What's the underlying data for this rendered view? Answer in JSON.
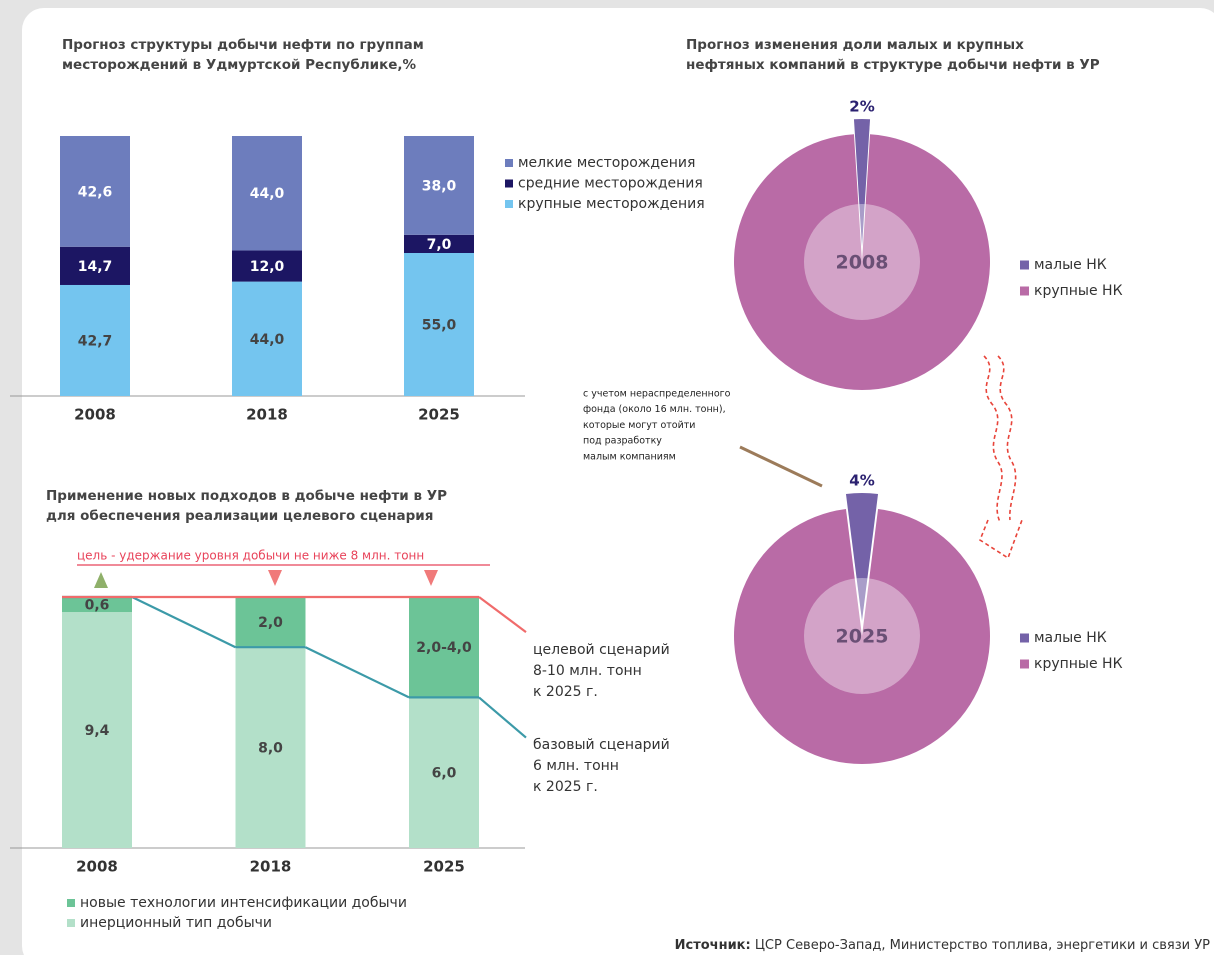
{
  "chart_data": [
    {
      "type": "bar",
      "stacked": true,
      "title": [
        "Прогноз структуры добычи нефти по группам",
        "месторождений в Удмуртской Республике,%"
      ],
      "categories": [
        "2008",
        "2018",
        "2025"
      ],
      "series": [
        {
          "name": "крупные месторождения",
          "color": "#74c5ef",
          "label_color": "#444444",
          "values": [
            42.7,
            44.0,
            55.0
          ],
          "value_labels": [
            "42,7",
            "44,0",
            "55,0"
          ]
        },
        {
          "name": "средние месторождения",
          "color": "#1c1663",
          "label_color": "#ffffff",
          "values": [
            14.7,
            12.0,
            7.0
          ],
          "value_labels": [
            "14,7",
            "12,0",
            "7,0"
          ]
        },
        {
          "name": "мелкие месторождения",
          "color": "#6d7dbd",
          "label_color": "#ffffff",
          "values": [
            42.6,
            44.0,
            38.0
          ],
          "value_labels": [
            "42,6",
            "44,0",
            "38,0"
          ]
        }
      ],
      "ylim": [
        0,
        100
      ]
    },
    {
      "type": "pie",
      "title": [
        "Прогноз изменения доли малых и крупных",
        "нефтяных компаний в структуре добычи нефти в УР"
      ],
      "center_label": "2008",
      "categories": [
        "малые НК",
        "крупные НК"
      ],
      "values": [
        2,
        98
      ],
      "value_labels": [
        "2%",
        null
      ],
      "colors": [
        "#7462a8",
        "#b96ba6"
      ]
    },
    {
      "type": "pie",
      "center_label": "2025",
      "categories": [
        "малые НК",
        "крупные НК"
      ],
      "values": [
        4,
        96
      ],
      "value_labels": [
        "4%",
        null
      ],
      "colors": [
        "#7462a8",
        "#b96ba6"
      ],
      "annotation": [
        "с учетом нераспределенного",
        "фонда (около 16 млн. тонн),",
        "которые могут отойти",
        "под разработку",
        "малым компаниям"
      ]
    },
    {
      "type": "bar",
      "stacked": true,
      "title": [
        "Применение новых подходов в добыче нефти в УР",
        "для обеспечения реализации целевого сценария"
      ],
      "target_label": "цель - удержание уровня добычи не ниже 8 млн. тонн",
      "categories": [
        "2008",
        "2018",
        "2025",
        null
      ],
      "series": [
        {
          "name": "инерционный тип добычи",
          "color": "#b3e0c9",
          "label_color": "#444444",
          "values": [
            9.4,
            8.0,
            6.0,
            null
          ],
          "value_labels": [
            "9,4",
            "8,0",
            "6,0",
            null
          ]
        },
        {
          "name": "новые технологии интенсификации добычи",
          "color": "#6cc497",
          "label_color": "#444444",
          "values": [
            0.6,
            2.0,
            4.0,
            null
          ],
          "value_labels": [
            "0,6",
            "2,0",
            "2,0-4,0",
            null
          ]
        }
      ],
      "lines": [
        {
          "name": [
            "целевой сценарий",
            "8-10 млн. тонн",
            "к 2025 г."
          ],
          "color": "#f06b6b",
          "values": [
            10,
            10,
            10,
            8.6
          ]
        },
        {
          "name": [
            "базовый сценарий",
            "6 млн. тонн",
            "к 2025 г."
          ],
          "color": "#3c9aa8",
          "values": [
            10,
            8,
            6,
            4.4
          ]
        }
      ],
      "ylim": [
        0,
        10
      ]
    }
  ],
  "source": {
    "label": "Источник:",
    "text": "ЦСР Северо-Запад, Министерство топлива, энергетики и связи УР"
  }
}
